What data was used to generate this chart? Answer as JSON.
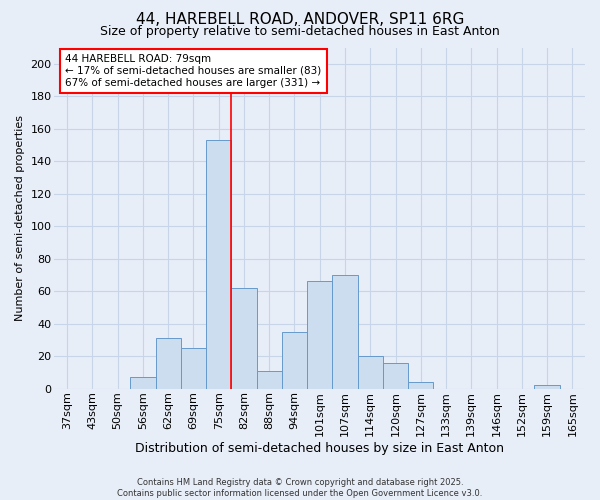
{
  "title_line1": "44, HAREBELL ROAD, ANDOVER, SP11 6RG",
  "title_line2": "Size of property relative to semi-detached houses in East Anton",
  "xlabel": "Distribution of semi-detached houses by size in East Anton",
  "ylabel": "Number of semi-detached properties",
  "categories": [
    "37sqm",
    "43sqm",
    "50sqm",
    "56sqm",
    "62sqm",
    "69sqm",
    "75sqm",
    "82sqm",
    "88sqm",
    "94sqm",
    "101sqm",
    "107sqm",
    "114sqm",
    "120sqm",
    "127sqm",
    "133sqm",
    "139sqm",
    "146sqm",
    "152sqm",
    "159sqm",
    "165sqm"
  ],
  "values": [
    0,
    0,
    0,
    7,
    31,
    25,
    153,
    62,
    11,
    35,
    66,
    70,
    20,
    16,
    4,
    0,
    0,
    0,
    0,
    2,
    0
  ],
  "bar_color": "#ccddf0",
  "bar_edge_color": "#6699cc",
  "grid_color": "#c8d4e8",
  "background_color": "#e8eef8",
  "vline_x_index": 6,
  "vline_color": "red",
  "annotation_text": "44 HAREBELL ROAD: 79sqm\n← 17% of semi-detached houses are smaller (83)\n67% of semi-detached houses are larger (331) →",
  "annotation_box_color": "white",
  "annotation_box_edge_color": "red",
  "footer_text": "Contains HM Land Registry data © Crown copyright and database right 2025.\nContains public sector information licensed under the Open Government Licence v3.0.",
  "ylim": [
    0,
    210
  ],
  "yticks": [
    0,
    20,
    40,
    60,
    80,
    100,
    120,
    140,
    160,
    180,
    200
  ],
  "title_fontsize": 11,
  "subtitle_fontsize": 9,
  "xlabel_fontsize": 9,
  "ylabel_fontsize": 8,
  "tick_fontsize": 8,
  "annot_fontsize": 7.5,
  "footer_fontsize": 6,
  "figsize": [
    6.0,
    5.0
  ],
  "dpi": 100
}
